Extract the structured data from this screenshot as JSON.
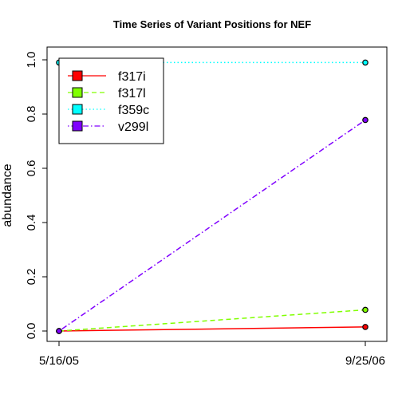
{
  "chart_data": {
    "type": "line",
    "title": "Time Series of Variant Positions for NEF",
    "xlabel": "",
    "ylabel": "abundance",
    "categories": [
      "5/16/05",
      "9/25/06"
    ],
    "ylim": [
      0,
      1
    ],
    "yticks": [
      "0.0",
      "0.2",
      "0.4",
      "0.6",
      "0.8",
      "1.0"
    ],
    "grid": false,
    "legend_position": "top-left",
    "series": [
      {
        "name": "f317i",
        "values": [
          0.0,
          0.015
        ],
        "color": "#FF0000",
        "line": "solid"
      },
      {
        "name": "f317l",
        "values": [
          0.0,
          0.078
        ],
        "color": "#80FF00",
        "line": "dashed"
      },
      {
        "name": "f359c",
        "values": [
          0.99,
          0.99
        ],
        "color": "#00FFFF",
        "line": "dotted"
      },
      {
        "name": "v299l",
        "values": [
          0.0,
          0.778
        ],
        "color": "#8000FF",
        "line": "dotdash"
      }
    ]
  }
}
